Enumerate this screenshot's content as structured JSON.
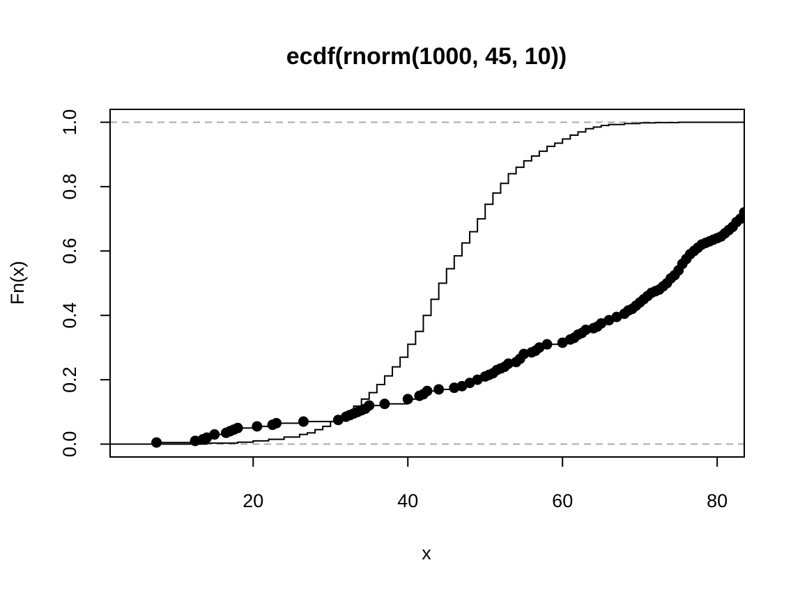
{
  "chart_data": {
    "type": "line",
    "title": "ecdf(rnorm(1000, 45, 10))",
    "xlabel": "x",
    "ylabel": "Fn(x)",
    "xlim": [
      1.5,
      83.5
    ],
    "ylim": [
      -0.04,
      1.04
    ],
    "x_ticks": [
      20,
      40,
      60,
      80
    ],
    "x_tick_labels": [
      "20",
      "40",
      "60",
      "80"
    ],
    "y_ticks": [
      0.0,
      0.2,
      0.4,
      0.6,
      0.8,
      1.0
    ],
    "y_tick_labels": [
      "0.0",
      "0.2",
      "0.4",
      "0.6",
      "0.8",
      "1.0"
    ],
    "reference_lines": [
      {
        "y": 0,
        "style": "dashed",
        "color": "#aaaaaa"
      },
      {
        "y": 1,
        "style": "dashed",
        "color": "#aaaaaa"
      }
    ],
    "series": [
      {
        "style": "step",
        "color": "#000000",
        "x": [
          1.5,
          10,
          14,
          18,
          20,
          22,
          24,
          26,
          27,
          28,
          29,
          30,
          31,
          32,
          33,
          34,
          35,
          36,
          37,
          38,
          39,
          40,
          41,
          42,
          43,
          44,
          45,
          46,
          47,
          48,
          49,
          50,
          51,
          52,
          53,
          54,
          55,
          56,
          57,
          58,
          59,
          60,
          61,
          62,
          63,
          64,
          65,
          66,
          68,
          70,
          72,
          75,
          78,
          83.5
        ],
        "y": [
          0,
          0,
          0.003,
          0.006,
          0.01,
          0.015,
          0.022,
          0.03,
          0.035,
          0.045,
          0.055,
          0.07,
          0.085,
          0.1,
          0.118,
          0.14,
          0.16,
          0.185,
          0.212,
          0.24,
          0.27,
          0.31,
          0.35,
          0.4,
          0.45,
          0.5,
          0.545,
          0.585,
          0.625,
          0.66,
          0.7,
          0.745,
          0.78,
          0.81,
          0.84,
          0.86,
          0.88,
          0.895,
          0.91,
          0.925,
          0.935,
          0.948,
          0.96,
          0.97,
          0.98,
          0.985,
          0.99,
          0.993,
          0.996,
          0.998,
          0.999,
          1,
          1,
          1
        ]
      },
      {
        "style": "step-with-points",
        "color": "#000000",
        "x": [
          7.5,
          12.5,
          13.5,
          14.0,
          15.0,
          16.5,
          17.0,
          17.5,
          18.0,
          20.5,
          22.5,
          23.0,
          26.5,
          31.0,
          32.0,
          32.5,
          33.0,
          33.5,
          34.0,
          34.5,
          35.0,
          37.0,
          40.0,
          41.5,
          42.0,
          42.5,
          44.0,
          46.0,
          47.0,
          48.0,
          49.0,
          50.0,
          50.5,
          51.0,
          51.5,
          52.0,
          52.5,
          53.0,
          54.0,
          54.5,
          55.0,
          56.0,
          56.5,
          57.0,
          58.0,
          60.0,
          61.0,
          61.5,
          62.0,
          62.5,
          63.0,
          64.0,
          64.5,
          65.0,
          66.0,
          67.0,
          68.0,
          68.5,
          69.0,
          69.5,
          70.0,
          70.5,
          71.0,
          71.5,
          72.0,
          72.5,
          73.0,
          73.5,
          74.0,
          74.5,
          75.0,
          75.5,
          76.0,
          76.5,
          77.0,
          77.5,
          78.0,
          78.5,
          79.0,
          79.5,
          80.0,
          80.5,
          81.0,
          81.5,
          82.0,
          82.5,
          83.0,
          83.5
        ],
        "y": [
          0.005,
          0.01,
          0.015,
          0.02,
          0.03,
          0.035,
          0.04,
          0.045,
          0.05,
          0.055,
          0.06,
          0.065,
          0.07,
          0.075,
          0.085,
          0.09,
          0.095,
          0.1,
          0.105,
          0.11,
          0.12,
          0.125,
          0.14,
          0.15,
          0.155,
          0.165,
          0.17,
          0.175,
          0.18,
          0.19,
          0.2,
          0.21,
          0.215,
          0.22,
          0.23,
          0.235,
          0.24,
          0.25,
          0.255,
          0.265,
          0.28,
          0.285,
          0.29,
          0.3,
          0.31,
          0.315,
          0.325,
          0.33,
          0.34,
          0.345,
          0.355,
          0.36,
          0.365,
          0.375,
          0.385,
          0.395,
          0.405,
          0.415,
          0.42,
          0.43,
          0.44,
          0.45,
          0.46,
          0.47,
          0.475,
          0.48,
          0.49,
          0.5,
          0.515,
          0.525,
          0.54,
          0.56,
          0.575,
          0.59,
          0.6,
          0.61,
          0.62,
          0.625,
          0.63,
          0.635,
          0.64,
          0.645,
          0.655,
          0.665,
          0.675,
          0.69,
          0.7,
          0.72
        ]
      }
    ]
  }
}
